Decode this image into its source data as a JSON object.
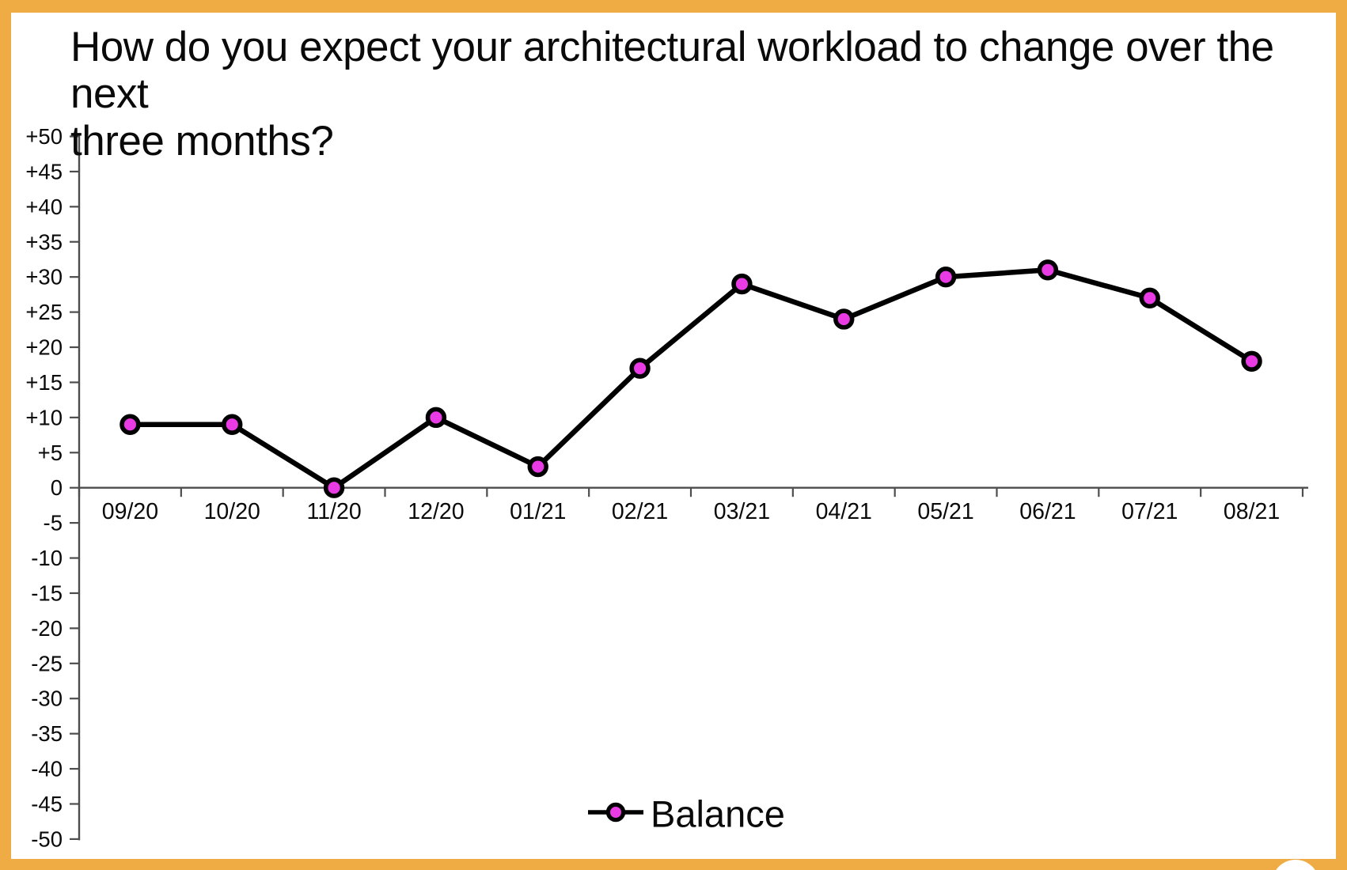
{
  "title": "How do you expect your architectural workload to change over the next\nthree months?",
  "frame": {
    "border_color": "#F0AC44"
  },
  "chart_data": {
    "type": "line",
    "categories": [
      "09/20",
      "10/20",
      "11/20",
      "12/20",
      "01/21",
      "02/21",
      "03/21",
      "04/21",
      "05/21",
      "06/21",
      "07/21",
      "08/21"
    ],
    "series": [
      {
        "name": "Balance",
        "values": [
          9,
          9,
          0,
          10,
          3,
          17,
          29,
          24,
          30,
          31,
          27,
          18
        ]
      }
    ],
    "title": "How do you expect your architectural workload to change over the next three months?",
    "xlabel": "",
    "ylabel": "",
    "ylim": [
      -50,
      50
    ],
    "y_tick_step": 5,
    "y_tick_labels": [
      "+50",
      "+45",
      "+40",
      "+35",
      "+30",
      "+25",
      "+20",
      "+15",
      "+10",
      "+5",
      "0",
      "-5",
      "-10",
      "-15",
      "-20",
      "-25",
      "-30",
      "-35",
      "-40",
      "-45",
      "-50"
    ],
    "grid": false,
    "legend": {
      "label": "Balance",
      "position": "bottom-center"
    },
    "colors": {
      "line": "#000000",
      "marker_fill": "#E93BE3",
      "marker_stroke": "#000000",
      "axis": "#4d4d4d",
      "text": "#0a0a0a"
    }
  }
}
